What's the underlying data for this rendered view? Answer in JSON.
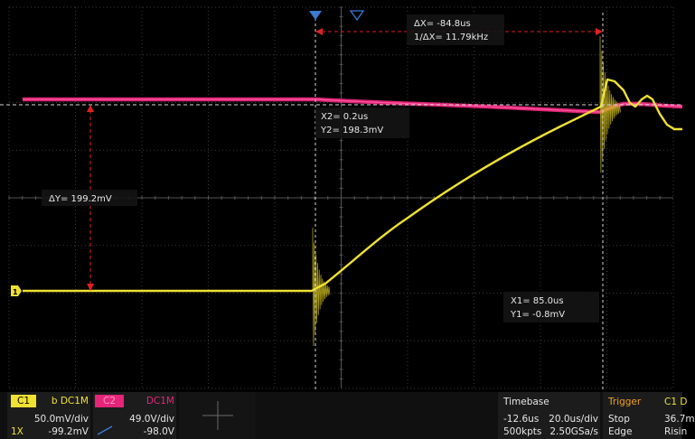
{
  "cursors": {
    "delta_x": "ΔX= -84.8us",
    "inv_delta_x": "1/ΔX= 11.79kHz",
    "x2_time": "X2= 0.2us",
    "y2_value": "Y2= 198.3mV",
    "delta_y": "ΔY= 199.2mV",
    "x1_time": "X1= 85.0us",
    "y1_value": "Y1= -0.8mV"
  },
  "channels": {
    "c1": {
      "label": "C1",
      "coupling": "b DC1M",
      "scale": "50.0mV/div",
      "offset": "-99.2mV",
      "probe": "1X",
      "color": "#f0e130"
    },
    "c2": {
      "label": "C2",
      "coupling": "DC1M",
      "scale": "49.0V/div",
      "offset": "-98.0V",
      "color": "#e6247a"
    }
  },
  "timebase": {
    "title": "Timebase",
    "delay": "-12.6us",
    "scale": "20.0us/div",
    "memory": "500kpts",
    "sample_rate": "2.50GSa/s"
  },
  "trigger": {
    "title": "Trigger",
    "source": "C1 D",
    "state": "Stop",
    "level": "36.7m",
    "type": "Edge",
    "slope": "Risin"
  },
  "channel_marker": "1",
  "colors": {
    "background": "#000000",
    "grid": "#3a3a3a",
    "cursor": "#e02020",
    "trigger_marker": "#3a7bd5"
  }
}
